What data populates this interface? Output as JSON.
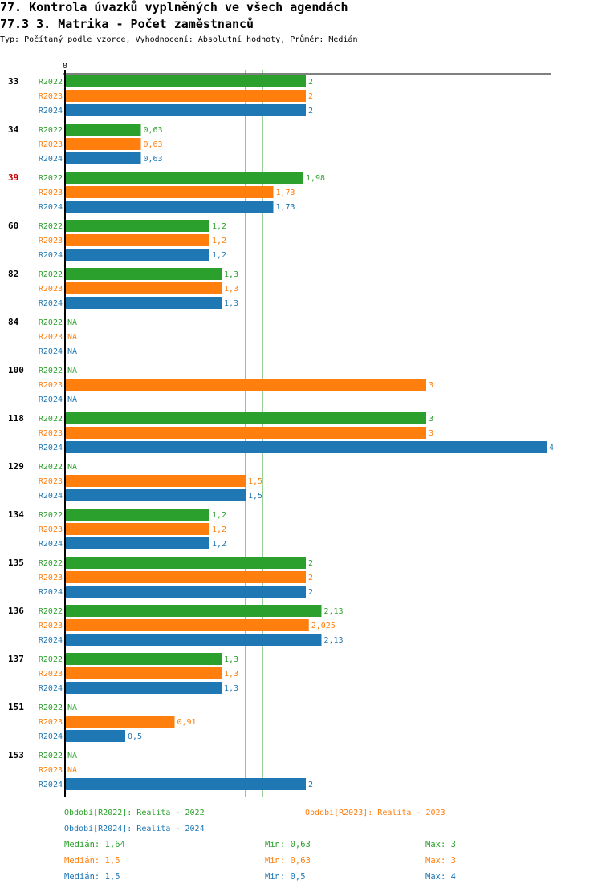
{
  "header": {
    "title": "77. Kontrola úvazků vyplněných ve všech agendách",
    "subtitle": "77.3 3. Matrika - Počet zaměstnanců",
    "info": "Typ: Počítaný podle vzorce, Vyhodnocení: Absolutní hodnoty, Průměr: Medián"
  },
  "colors": {
    "R2022": "#2ca02c",
    "R2023": "#ff7f0e",
    "R2024": "#1f77b4",
    "highlight": "#cc0000",
    "axis": "#000000"
  },
  "chart_data": {
    "type": "bar",
    "orientation": "horizontal",
    "axis_zero_label": "0",
    "xlim": [
      0,
      4
    ],
    "na_label": "NA",
    "categories": [
      "33",
      "34",
      "39",
      "60",
      "82",
      "84",
      "100",
      "118",
      "129",
      "134",
      "135",
      "136",
      "137",
      "151",
      "153"
    ],
    "highlighted_categories": [
      "39"
    ],
    "series": [
      {
        "name": "R2022",
        "values": [
          2,
          0.63,
          1.98,
          1.2,
          1.3,
          null,
          null,
          3,
          null,
          1.2,
          2,
          2.13,
          1.3,
          null,
          null
        ],
        "labels": [
          "2",
          "0,63",
          "1,98",
          "1,2",
          "1,3",
          "NA",
          "NA",
          "3",
          "NA",
          "1,2",
          "2",
          "2,13",
          "1,3",
          "NA",
          "NA"
        ]
      },
      {
        "name": "R2023",
        "values": [
          2,
          0.63,
          1.73,
          1.2,
          1.3,
          null,
          3,
          3,
          1.5,
          1.2,
          2,
          2.025,
          1.3,
          0.91,
          null
        ],
        "labels": [
          "2",
          "0,63",
          "1,73",
          "1,2",
          "1,3",
          "NA",
          "3",
          "3",
          "1,5",
          "1,2",
          "2",
          "2,025",
          "1,3",
          "0,91",
          "NA"
        ]
      },
      {
        "name": "R2024",
        "values": [
          2,
          0.63,
          1.73,
          1.2,
          1.3,
          null,
          null,
          4,
          1.5,
          1.2,
          2,
          2.13,
          1.3,
          0.5,
          2
        ],
        "labels": [
          "2",
          "0,63",
          "1,73",
          "1,2",
          "1,3",
          "NA",
          "NA",
          "4",
          "1,5",
          "1,2",
          "2",
          "2,13",
          "1,3",
          "0,5",
          "2"
        ]
      }
    ],
    "reference_lines": [
      {
        "series": "R2024",
        "value": 1.5
      },
      {
        "series": "R2022",
        "value": 1.64
      }
    ]
  },
  "legend": [
    {
      "series": "R2022",
      "label": "Období[R2022]: Realita - 2022"
    },
    {
      "series": "R2023",
      "label": "Období[R2023]: Realita - 2023"
    },
    {
      "series": "R2024",
      "label": "Období[R2024]: Realita - 2024"
    }
  ],
  "stats": [
    {
      "series": "R2022",
      "median": "Medián: 1,64",
      "min": "Min: 0,63",
      "max": "Max: 3"
    },
    {
      "series": "R2023",
      "median": "Medián: 1,5",
      "min": "Min: 0,63",
      "max": "Max: 3"
    },
    {
      "series": "R2024",
      "median": "Medián: 1,5",
      "min": "Min: 0,5",
      "max": "Max: 4"
    }
  ]
}
